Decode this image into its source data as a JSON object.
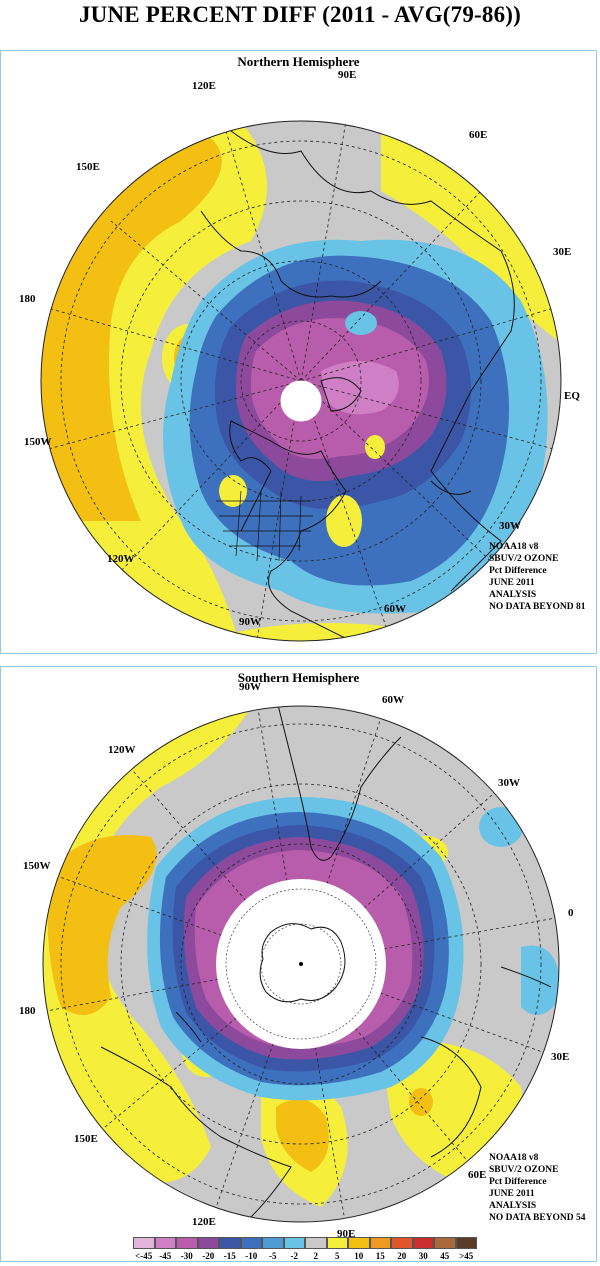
{
  "title": "JUNE PERCENT DIFF (2011 - AVG(79-86))",
  "north": {
    "heading": "Northern Hemisphere",
    "lon_labels": [
      "90E",
      "60E",
      "30E",
      "EQ",
      "30W",
      "60W",
      "90W",
      "120W",
      "150W",
      "180",
      "150E",
      "120E"
    ],
    "info": [
      "NOAA18 v8",
      "SBUV/2 OZONE",
      "Pct Difference",
      "JUNE 2011",
      "ANALYSIS",
      "NO DATA BEYOND  81"
    ]
  },
  "south": {
    "heading": "Southern Hemisphere",
    "lon_labels": [
      "90W",
      "60W",
      "30W",
      "0",
      "30E",
      "60E",
      "90E",
      "120E",
      "150E",
      "180",
      "150W",
      "120W"
    ],
    "info": [
      "NOAA18 v8",
      "SBUV/2 OZONE",
      "Pct Difference",
      "JUNE 2011",
      "ANALYSIS",
      "NO DATA BEYOND  54"
    ]
  },
  "legend": {
    "labels": [
      "<-45",
      "-45",
      "-30",
      "-20",
      "-15",
      "-10",
      "-5",
      "-2",
      "2",
      "5",
      "10",
      "15",
      "20",
      "30",
      "45",
      ">45"
    ],
    "colors": [
      "#e2b4dc",
      "#cf7fc6",
      "#b85dab",
      "#8d4a9c",
      "#3b56a6",
      "#3d70bd",
      "#4e9bd3",
      "#69c3e6",
      "#c9c9c9",
      "#f5ef3c",
      "#f3bf12",
      "#ee9a22",
      "#e0562a",
      "#cc2e2e",
      "#a86a3a",
      "#5a3d26"
    ]
  },
  "colors": {
    "panel_border": "#8ec9e6",
    "gray": "#c9c9c9",
    "yellow": "#f5ef3c",
    "orange": "#f3bf12",
    "light_blue": "#69c3e6",
    "mid_blue": "#3d70bd",
    "dark_blue": "#3b56a6",
    "purple": "#8d4a9c",
    "magenta": "#b85dab",
    "pink": "#cf7fc6"
  }
}
